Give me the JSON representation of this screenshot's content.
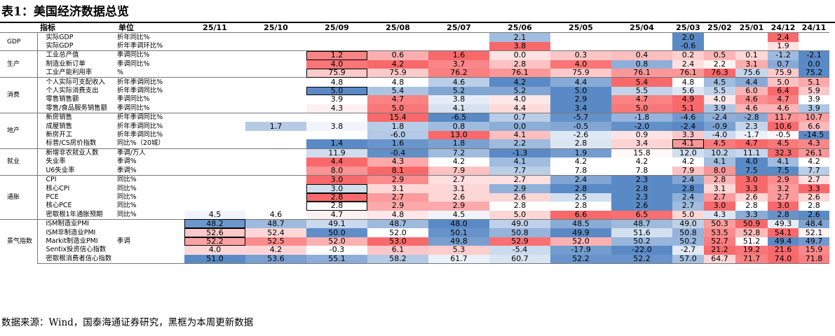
{
  "title": "表1：美国经济数据总览",
  "source": "数据来源：Wind，国泰海通证券研究，黑框为本周更新数据",
  "header": {
    "indicator": "指标",
    "unit": "单位",
    "periods": [
      "25/11",
      "25/10",
      "25/09",
      "25/08",
      "25/07",
      "25/06",
      "25/05",
      "25/04",
      "25/03",
      "25/02",
      "25/01",
      "24/12",
      "24/11"
    ]
  },
  "groups": [
    {
      "name": "GDP",
      "rows": [
        {
          "name": "实际GDP",
          "unit": "折年同比%",
          "values": [
            "",
            "",
            "",
            "",
            "",
            "2.1",
            "",
            "",
            "2.0",
            "",
            "",
            "2.4",
            ""
          ],
          "boxed": []
        },
        {
          "name": "实际GDP",
          "unit": "折年季调环比%",
          "values": [
            "",
            "",
            "",
            "",
            "",
            "3.8",
            "",
            "",
            "-0.6",
            "",
            "",
            "1.9",
            ""
          ],
          "boxed": []
        }
      ]
    },
    {
      "name": "生产",
      "rows": [
        {
          "name": "工业总产值",
          "unit": "季调同比%",
          "values": [
            "",
            "",
            "1.2",
            "0.6",
            "1.6",
            "0.0",
            "0.3",
            "0.4",
            "0.2",
            "0.5",
            "0.1",
            "-1.2",
            "-2.1"
          ],
          "boxed": [
            2
          ]
        },
        {
          "name": "制造业新订单",
          "unit": "季调同比%",
          "values": [
            "",
            "",
            "4.0",
            "4.2",
            "3.7",
            "2.8",
            "4.0",
            "0.8",
            "2.4",
            "2.2",
            "3.1",
            "0.7",
            "0.0"
          ],
          "boxed": []
        },
        {
          "name": "工业产能利用率",
          "unit": "%",
          "values": [
            "",
            "",
            "75.9",
            "75.9",
            "76.2",
            "76.1",
            "75.9",
            "76.1",
            "76.1",
            "76.3",
            "75.6",
            "75.9",
            "75.2"
          ],
          "boxed": [
            2
          ]
        }
      ]
    },
    {
      "name": "消费",
      "rows": [
        {
          "name": "个人实际可支配收入",
          "unit": "折年季调同比%",
          "values": [
            "",
            "",
            "4.8",
            "4.8",
            "4.6",
            "4.2",
            "4.4",
            "5.4",
            "4.8",
            "4.5",
            "4.4",
            "5.0",
            "5.1"
          ],
          "boxed": []
        },
        {
          "name": "个人实际消费支出",
          "unit": "折年季调同比%",
          "values": [
            "",
            "",
            "5.0",
            "5.4",
            "5.2",
            "5.2",
            "5.0",
            "5.5",
            "5.6",
            "5.5",
            "6.0",
            "6.4",
            "5.9"
          ],
          "boxed": [
            2
          ]
        },
        {
          "name": "零售销售额",
          "unit": "季调同比%",
          "values": [
            "",
            "",
            "3.9",
            "4.7",
            "3.8",
            "4.0",
            "2.9",
            "4.7",
            "4.9",
            "4.0",
            "4.6",
            "4.7",
            "3.9"
          ],
          "boxed": []
        },
        {
          "name": "零售/食品服务销售额",
          "unit": "季调同比%",
          "values": [
            "",
            "",
            "4.3",
            "5.0",
            "4.1",
            "4.4",
            "3.4",
            "5.0",
            "5.1",
            "3.9",
            "4.6",
            "4.6",
            "3.9"
          ],
          "boxed": []
        }
      ]
    },
    {
      "name": "地产",
      "rows": [
        {
          "name": "新房销售",
          "unit": "折年季调同比%",
          "values": [
            "",
            "",
            "",
            "15.4",
            "-6.5",
            "0.7",
            "-5.7",
            "-1.8",
            "-4.6",
            "-2.4",
            "-2.8",
            "11.7",
            "10.7"
          ],
          "boxed": []
        },
        {
          "name": "成屋销售",
          "unit": "折年季调同比%",
          "values": [
            "",
            "1.7",
            "3.8",
            "1.8",
            "0.8",
            "0.0",
            "-0.5",
            "-2.0",
            "-2.4",
            "-0.9",
            "2.3",
            "10.6",
            "6.6"
          ],
          "boxed": []
        },
        {
          "name": "新房开工",
          "unit": "折年季调同比%",
          "values": [
            "",
            "",
            "",
            "-6.0",
            "13.0",
            "4.1",
            "-2.6",
            "0.9",
            "3.3",
            "-4.0",
            "-1.7",
            "-0.5",
            "-14.5"
          ],
          "boxed": []
        },
        {
          "name": "标普/CS房价指数",
          "unit": "同比%（20城）",
          "values": [
            "",
            "",
            "1.4",
            "1.6",
            "1.8",
            "2.2",
            "2.8",
            "3.4",
            "4.1",
            "4.5",
            "4.7",
            "4.5",
            "4.3"
          ],
          "boxed": [
            8
          ]
        }
      ]
    },
    {
      "name": "就业",
      "rows": [
        {
          "name": "新增非农就业人数",
          "unit": "季调/万人",
          "values": [
            "",
            "",
            "11.9",
            "-0.4",
            "7.2",
            "-1.3",
            "1.9",
            "15.8",
            "12.0",
            "10.2",
            "11.1",
            "32.3",
            "26.1"
          ],
          "boxed": []
        },
        {
          "name": "失业率",
          "unit": "季调%",
          "values": [
            "",
            "",
            "4.4",
            "4.3",
            "4.2",
            "4.1",
            "4.2",
            "4.2",
            "4.2",
            "4.1",
            "4.0",
            "4.1",
            "4.2"
          ],
          "boxed": []
        },
        {
          "name": "U6失业率",
          "unit": "季调%",
          "values": [
            "",
            "",
            "8.0",
            "8.1",
            "7.9",
            "7.7",
            "7.8",
            "7.8",
            "7.9",
            "8.0",
            "7.5",
            "7.5",
            "7.7"
          ],
          "boxed": []
        }
      ]
    },
    {
      "name": "通胀",
      "rows": [
        {
          "name": "CPI",
          "unit": "同比%",
          "values": [
            "",
            "",
            "3.0",
            "2.9",
            "2.7",
            "2.7",
            "2.4",
            "2.3",
            "2.4",
            "2.8",
            "3.0",
            "2.9",
            "2.7"
          ],
          "boxed": []
        },
        {
          "name": "核心CPI",
          "unit": "同比%",
          "values": [
            "",
            "",
            "3.0",
            "3.1",
            "3.1",
            "2.9",
            "2.8",
            "2.8",
            "2.8",
            "3.1",
            "3.3",
            "3.2",
            "3.3"
          ],
          "boxed": [
            2
          ]
        },
        {
          "name": "PCE",
          "unit": "同比%",
          "values": [
            "",
            "",
            "2.8",
            "2.7",
            "2.6",
            "2.6",
            "2.5",
            "2.3",
            "2.4",
            "2.7",
            "2.6",
            "2.7",
            "2.6"
          ],
          "boxed": [
            2
          ]
        },
        {
          "name": "核心PCE",
          "unit": "同比%",
          "values": [
            "",
            "",
            "2.8",
            "2.9",
            "2.9",
            "2.8",
            "2.8",
            "2.6",
            "2.7",
            "3.0",
            "2.8",
            "3.0",
            "2.8"
          ],
          "boxed": [
            2
          ]
        },
        {
          "name": "密歇根1年通胀预期",
          "unit": "同比%",
          "values": [
            "4.5",
            "4.6",
            "4.7",
            "4.8",
            "4.5",
            "5.0",
            "6.6",
            "6.5",
            "5.0",
            "4.3",
            "3.3",
            "2.8",
            "2.6"
          ],
          "boxed": []
        }
      ]
    },
    {
      "name": "景气指数",
      "rows": [
        {
          "name": "ISM制造业PMI",
          "unit": "",
          "values": [
            "48.2",
            "48.7",
            "49.1",
            "48.7",
            "48.0",
            "49.0",
            "48.5",
            "48.7",
            "49.0",
            "50.3",
            "50.9",
            "49.3",
            "48.4"
          ],
          "boxed": [
            0
          ]
        },
        {
          "name": "ISM非制造业PMI",
          "unit": "",
          "values": [
            "52.6",
            "52.4",
            "50.0",
            "52.0",
            "50.1",
            "50.8",
            "49.9",
            "51.6",
            "50.8",
            "53.5",
            "52.8",
            "54.1",
            "52.1"
          ],
          "boxed": [
            0
          ]
        },
        {
          "name": "Markit制造业PMI",
          "unit": "季调",
          "values": [
            "52.2",
            "52.5",
            "52.0",
            "53.0",
            "49.8",
            "52.9",
            "52.0",
            "50.2",
            "50.2",
            "52.7",
            "51.2",
            "49.4",
            "49.7"
          ],
          "boxed": [
            0
          ]
        },
        {
          "name": "Sentix投资信心指数",
          "unit": "",
          "values": [
            "4.0",
            "4.2",
            "-0.3",
            "6.1",
            "5.3",
            "-5.4",
            "-17.9",
            "-22.0",
            "-2.7",
            "21.2",
            "19.2",
            "21.6",
            "15.9"
          ],
          "boxed": []
        },
        {
          "name": "密歇根消费者信心指数",
          "unit": "",
          "values": [
            "51.0",
            "53.6",
            "55.1",
            "58.2",
            "61.7",
            "60.7",
            "52.2",
            "52.2",
            "57.0",
            "64.7",
            "71.7",
            "74.0",
            "71.8"
          ],
          "boxed": []
        }
      ]
    }
  ]
}
